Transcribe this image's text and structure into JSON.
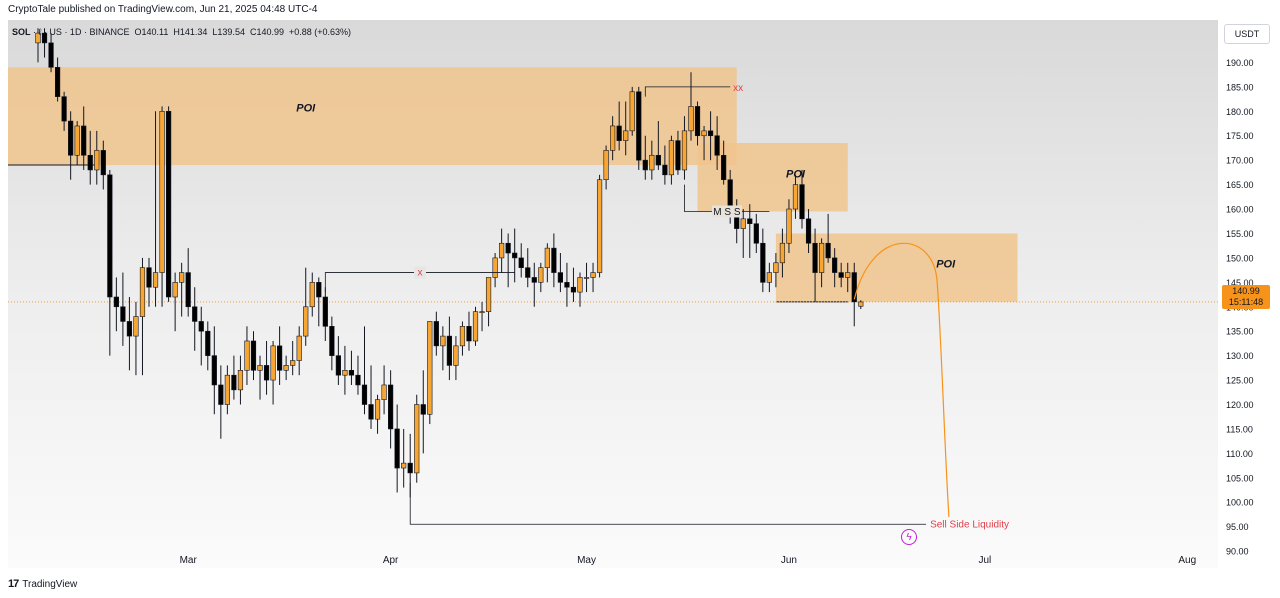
{
  "header": {
    "publisher": "CryptoTale published on TradingView.com, Jun 21, 2025 04:48 UTC-4"
  },
  "legend": {
    "symbol": "SOL",
    "symbol_rest": "· ℓ · US · 1D · BINANCE",
    "o_label": "O",
    "o": "140.11",
    "h_label": "H",
    "h": "141.34",
    "l_label": "L",
    "l": "139.54",
    "c_label": "C",
    "c": "140.99",
    "change": "+0.88 (+0.63%)"
  },
  "axis": {
    "unit": "USDT",
    "last_price": "140.99",
    "countdown": "15:11:48"
  },
  "footer": {
    "brand": "TradingView",
    "logo": "17"
  },
  "colors": {
    "up": "#f7a634",
    "down": "#000000",
    "zone": "#f0c48d",
    "accent": "#f7931a",
    "ssl": "#e0404a",
    "bolt": "#c21fd6"
  },
  "chart_data": {
    "type": "candlestick",
    "symbol": "SOL/USDT",
    "interval": "1D",
    "exchange": "BINANCE",
    "ylim": [
      89,
      195
    ],
    "yticks": [
      "90.00",
      "95.00",
      "100.00",
      "105.00",
      "110.00",
      "115.00",
      "120.00",
      "125.00",
      "130.00",
      "135.00",
      "140.00",
      "145.00",
      "150.00",
      "155.00",
      "160.00",
      "165.00",
      "170.00",
      "175.00",
      "180.00",
      "185.00",
      "190.00"
    ],
    "x_labels": [
      {
        "label": "Mar",
        "index": 23
      },
      {
        "label": "Apr",
        "index": 54
      },
      {
        "label": "May",
        "index": 84
      },
      {
        "label": "Jun",
        "index": 115
      },
      {
        "label": "Jul",
        "index": 145
      },
      {
        "label": "Aug",
        "index": 176
      }
    ],
    "candles": [
      [
        194,
        197,
        190,
        196
      ],
      [
        196,
        197,
        191,
        194
      ],
      [
        194,
        196,
        188,
        189
      ],
      [
        189,
        191,
        182,
        183
      ],
      [
        183,
        184,
        176,
        178
      ],
      [
        178,
        180,
        166,
        171
      ],
      [
        171,
        178,
        169,
        177
      ],
      [
        177,
        181,
        168,
        171
      ],
      [
        171,
        176,
        165,
        168
      ],
      [
        168,
        176,
        165,
        172
      ],
      [
        172,
        174,
        164,
        167
      ],
      [
        167,
        168,
        130,
        142
      ],
      [
        142,
        146,
        135,
        140
      ],
      [
        140,
        147,
        132,
        137
      ],
      [
        137,
        142,
        127,
        134
      ],
      [
        134,
        141,
        126,
        138
      ],
      [
        138,
        150,
        126,
        148
      ],
      [
        148,
        150,
        140,
        144
      ],
      [
        144,
        180,
        140,
        147
      ],
      [
        147,
        181,
        140,
        180
      ],
      [
        180,
        181,
        141,
        142
      ],
      [
        142,
        147,
        135,
        145
      ],
      [
        145,
        149,
        138,
        147
      ],
      [
        147,
        152,
        138,
        140
      ],
      [
        140,
        144,
        131,
        137
      ],
      [
        137,
        140,
        128,
        135
      ],
      [
        135,
        137,
        127,
        130
      ],
      [
        130,
        136,
        118,
        124
      ],
      [
        124,
        128,
        113,
        120
      ],
      [
        120,
        128,
        118,
        126
      ],
      [
        126,
        130,
        121,
        123
      ],
      [
        123,
        130,
        120,
        127
      ],
      [
        127,
        136,
        124,
        133
      ],
      [
        133,
        135,
        125,
        127
      ],
      [
        127,
        130,
        121,
        128
      ],
      [
        128,
        133,
        122,
        125
      ],
      [
        125,
        133,
        120,
        132
      ],
      [
        132,
        136,
        124,
        127
      ],
      [
        127,
        130,
        125,
        128
      ],
      [
        128,
        133,
        126,
        129
      ],
      [
        129,
        136,
        126,
        134
      ],
      [
        134,
        148,
        132,
        140
      ],
      [
        140,
        147,
        138,
        145
      ],
      [
        145,
        146,
        136,
        142
      ],
      [
        142,
        144,
        133,
        136
      ],
      [
        136,
        138,
        127,
        130
      ],
      [
        130,
        134,
        124,
        126
      ],
      [
        126,
        132,
        122,
        127
      ],
      [
        127,
        131,
        124,
        126
      ],
      [
        126,
        130,
        122,
        124
      ],
      [
        124,
        136,
        118,
        120
      ],
      [
        120,
        128,
        115,
        117
      ],
      [
        117,
        122,
        114,
        121
      ],
      [
        121,
        128,
        118,
        124
      ],
      [
        124,
        127,
        111,
        115
      ],
      [
        115,
        120,
        102,
        107
      ],
      [
        107,
        115,
        103,
        108
      ],
      [
        108,
        114,
        101,
        106
      ],
      [
        106,
        122,
        104,
        120
      ],
      [
        120,
        127,
        110,
        118
      ],
      [
        118,
        137,
        116,
        137
      ],
      [
        137,
        139,
        130,
        132
      ],
      [
        132,
        136,
        127,
        134
      ],
      [
        134,
        138,
        125,
        128
      ],
      [
        128,
        134,
        125,
        132
      ],
      [
        132,
        137,
        130,
        136
      ],
      [
        136,
        139,
        131,
        133
      ],
      [
        133,
        140,
        132,
        139
      ],
      [
        139,
        141,
        135,
        139
      ],
      [
        139,
        145,
        136,
        146
      ],
      [
        146,
        151,
        144,
        150
      ],
      [
        150,
        156,
        147,
        153
      ],
      [
        153,
        155,
        144,
        151
      ],
      [
        151,
        156,
        145,
        150
      ],
      [
        150,
        153,
        146,
        148
      ],
      [
        148,
        152,
        144,
        146
      ],
      [
        146,
        149,
        140,
        145
      ],
      [
        145,
        149,
        143,
        148
      ],
      [
        148,
        153,
        145,
        152
      ],
      [
        152,
        155,
        144,
        147
      ],
      [
        147,
        151,
        143,
        145
      ],
      [
        145,
        149,
        140,
        144
      ],
      [
        144,
        148,
        141,
        143
      ],
      [
        143,
        147,
        140,
        146
      ],
      [
        146,
        149,
        143,
        146
      ],
      [
        146,
        149,
        143,
        147
      ],
      [
        147,
        167,
        146,
        166
      ],
      [
        166,
        173,
        164,
        172
      ],
      [
        172,
        179,
        170,
        177
      ],
      [
        177,
        182,
        172,
        174
      ],
      [
        174,
        182,
        171,
        176
      ],
      [
        176,
        185,
        175,
        184
      ],
      [
        184,
        185,
        168,
        170
      ],
      [
        170,
        175,
        166,
        168
      ],
      [
        168,
        174,
        166,
        171
      ],
      [
        171,
        178,
        168,
        169
      ],
      [
        169,
        173,
        165,
        167
      ],
      [
        167,
        175,
        165,
        174
      ],
      [
        174,
        176,
        167,
        168
      ],
      [
        168,
        179,
        166,
        176
      ],
      [
        176,
        188,
        174,
        181
      ],
      [
        181,
        182,
        173,
        175
      ],
      [
        175,
        177,
        170,
        176
      ],
      [
        176,
        180,
        170,
        175
      ],
      [
        175,
        179,
        168,
        171
      ],
      [
        171,
        174,
        165,
        166
      ],
      [
        166,
        168,
        157,
        159
      ],
      [
        159,
        162,
        153,
        156
      ],
      [
        156,
        160,
        150,
        158
      ],
      [
        158,
        161,
        150,
        157
      ],
      [
        157,
        159,
        151,
        153
      ],
      [
        153,
        156,
        143,
        145
      ],
      [
        145,
        149,
        143,
        147
      ],
      [
        147,
        151,
        144,
        149
      ],
      [
        149,
        156,
        146,
        153
      ],
      [
        153,
        162,
        151,
        160
      ],
      [
        160,
        167,
        158,
        165
      ],
      [
        165,
        168,
        156,
        158
      ],
      [
        158,
        160,
        151,
        153
      ],
      [
        153,
        156,
        141,
        147
      ],
      [
        147,
        154,
        144,
        153
      ],
      [
        153,
        159,
        149,
        150
      ],
      [
        150,
        152,
        144,
        147
      ],
      [
        147,
        149,
        144,
        146
      ],
      [
        146,
        149,
        143,
        147
      ],
      [
        147,
        149,
        136,
        141
      ],
      [
        140.11,
        141.34,
        139.54,
        140.99
      ]
    ],
    "zones": [
      {
        "label": "POI",
        "from": 0,
        "to": 107,
        "low": 169,
        "high": 189
      },
      {
        "label": "POI",
        "from": 101,
        "to": 124,
        "low": 159.5,
        "high": 173.5
      },
      {
        "label": "POI",
        "from": 113,
        "to": 150,
        "low": 141,
        "high": 155
      }
    ],
    "annotations": {
      "x_marker": {
        "text": "x",
        "price": 147,
        "from": 44,
        "to": 73
      },
      "xx_marker": {
        "text": "xx",
        "price": 185,
        "from": 93,
        "to": 106
      },
      "mss": {
        "text": "M S S",
        "price": 159.5,
        "from": 99,
        "to": 112
      },
      "ssl": {
        "text": "Sell Side Liquidity",
        "price": 95.5,
        "from": 57,
        "to": 136
      }
    },
    "current_price": 140.99
  }
}
